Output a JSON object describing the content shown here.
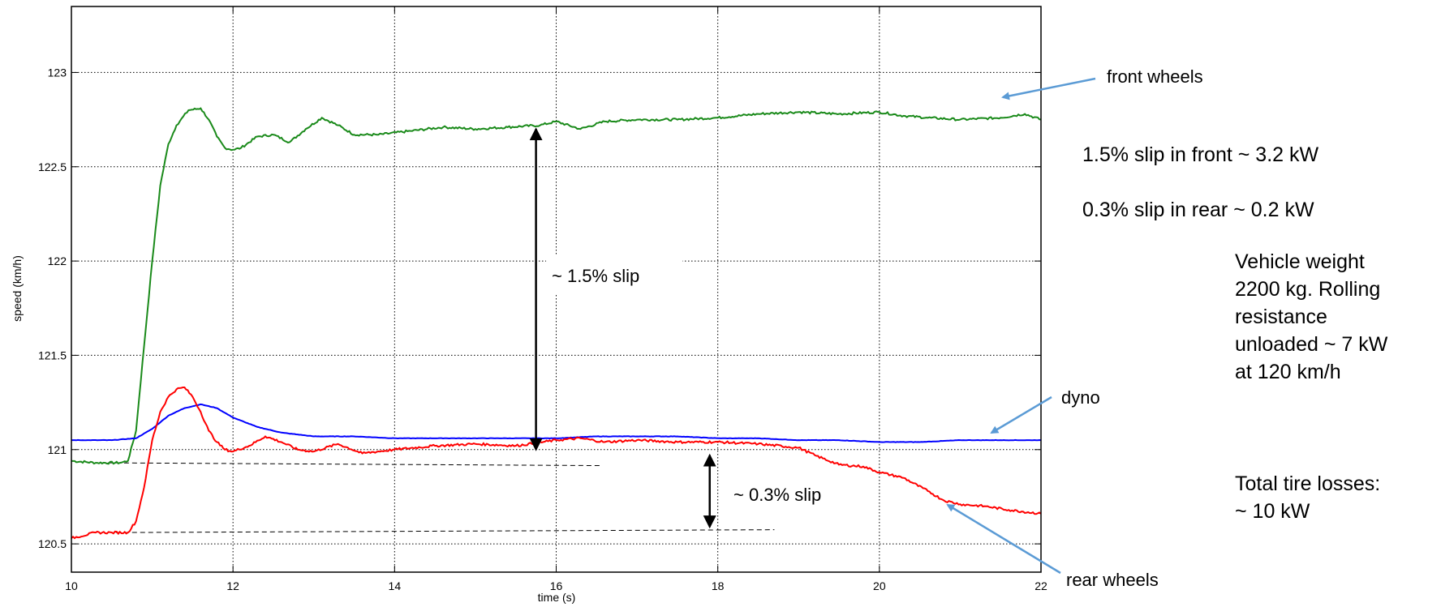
{
  "chart_data": {
    "type": "line",
    "xlabel": "time (s)",
    "ylabel": "speed (km/h)",
    "xlim": [
      10,
      22
    ],
    "ylim": [
      120.35,
      123.35
    ],
    "xticks": [
      10,
      12,
      14,
      16,
      18,
      20,
      22
    ],
    "yticks": [
      120.5,
      121,
      121.5,
      122,
      122.5,
      123
    ],
    "ytick_labels": [
      "120.5",
      "121",
      "121.5",
      "122",
      "122.5",
      "123"
    ],
    "grid": true,
    "series": [
      {
        "name": "front wheels",
        "color": "#1a8a1a",
        "x": [
          10,
          10.3,
          10.6,
          10.7,
          10.8,
          10.9,
          11.0,
          11.1,
          11.2,
          11.3,
          11.45,
          11.6,
          11.7,
          11.8,
          11.9,
          12.0,
          12.1,
          12.3,
          12.5,
          12.7,
          12.9,
          13.1,
          13.3,
          13.5,
          13.8,
          14.2,
          14.6,
          15.0,
          15.4,
          15.8,
          16.0,
          16.3,
          16.6,
          17.0,
          17.5,
          18.0,
          18.5,
          19.0,
          19.5,
          20.0,
          20.3,
          20.6,
          21.0,
          21.5,
          21.8,
          22
        ],
        "values": [
          120.94,
          120.93,
          120.93,
          120.94,
          121.1,
          121.55,
          122.0,
          122.4,
          122.62,
          122.72,
          122.8,
          122.81,
          122.75,
          122.66,
          122.6,
          122.59,
          122.6,
          122.66,
          122.67,
          122.63,
          122.7,
          122.76,
          122.72,
          122.67,
          122.67,
          122.69,
          122.71,
          122.7,
          122.71,
          122.72,
          122.74,
          122.7,
          122.74,
          122.75,
          122.75,
          122.76,
          122.78,
          122.79,
          122.78,
          122.79,
          122.77,
          122.76,
          122.75,
          122.76,
          122.78,
          122.75
        ]
      },
      {
        "name": "dyno",
        "color": "#0000ff",
        "x": [
          10,
          10.5,
          10.8,
          11.0,
          11.2,
          11.4,
          11.6,
          11.8,
          12.0,
          12.3,
          12.6,
          13.0,
          13.5,
          14.0,
          15.0,
          16.0,
          16.5,
          17.0,
          17.5,
          18.0,
          18.5,
          19.0,
          19.5,
          20.0,
          20.5,
          21.0,
          21.5,
          22
        ],
        "values": [
          121.05,
          121.05,
          121.06,
          121.11,
          121.18,
          121.22,
          121.24,
          121.22,
          121.17,
          121.12,
          121.09,
          121.07,
          121.07,
          121.06,
          121.06,
          121.06,
          121.07,
          121.07,
          121.07,
          121.06,
          121.06,
          121.05,
          121.05,
          121.04,
          121.04,
          121.05,
          121.05,
          121.05
        ]
      },
      {
        "name": "rear wheels",
        "color": "#ff0000",
        "x": [
          10,
          10.3,
          10.5,
          10.7,
          10.8,
          10.9,
          11.0,
          11.1,
          11.2,
          11.3,
          11.4,
          11.5,
          11.6,
          11.7,
          11.8,
          11.9,
          12.0,
          12.2,
          12.4,
          12.6,
          12.8,
          13.0,
          13.3,
          13.6,
          14.0,
          14.5,
          15.0,
          15.5,
          16.0,
          16.3,
          16.6,
          17.0,
          17.5,
          18.0,
          18.5,
          19.0,
          19.2,
          19.5,
          19.8,
          20.0,
          20.3,
          20.6,
          20.8,
          21.0,
          21.3,
          21.6,
          22
        ],
        "values": [
          120.53,
          120.56,
          120.56,
          120.56,
          120.62,
          120.8,
          121.05,
          121.2,
          121.28,
          121.32,
          121.33,
          121.28,
          121.2,
          121.1,
          121.04,
          121.0,
          120.99,
          121.02,
          121.07,
          121.04,
          121.0,
          120.99,
          121.03,
          120.98,
          121.0,
          121.02,
          121.03,
          121.02,
          121.05,
          121.06,
          121.04,
          121.05,
          121.04,
          121.04,
          121.03,
          121.01,
          120.97,
          120.92,
          120.91,
          120.88,
          120.85,
          120.78,
          120.73,
          120.71,
          120.7,
          120.68,
          120.66
        ]
      }
    ]
  },
  "annotations": {
    "front_slip": "~ 1.5% slip",
    "rear_slip": "~ 0.3% slip",
    "front_label": "front wheels",
    "dyno_label": "dyno",
    "rear_label": "rear wheels"
  },
  "notes": {
    "line1": "1.5% slip in front ~ 3.2 kW",
    "line2": "0.3% slip in rear ~ 0.2 kW",
    "vehicle": [
      "Vehicle weight",
      "2200 kg. Rolling",
      "resistance",
      "unloaded ~ 7 kW",
      "at 120 km/h"
    ],
    "total": [
      "Total tire losses:",
      "~ 10 kW"
    ]
  }
}
